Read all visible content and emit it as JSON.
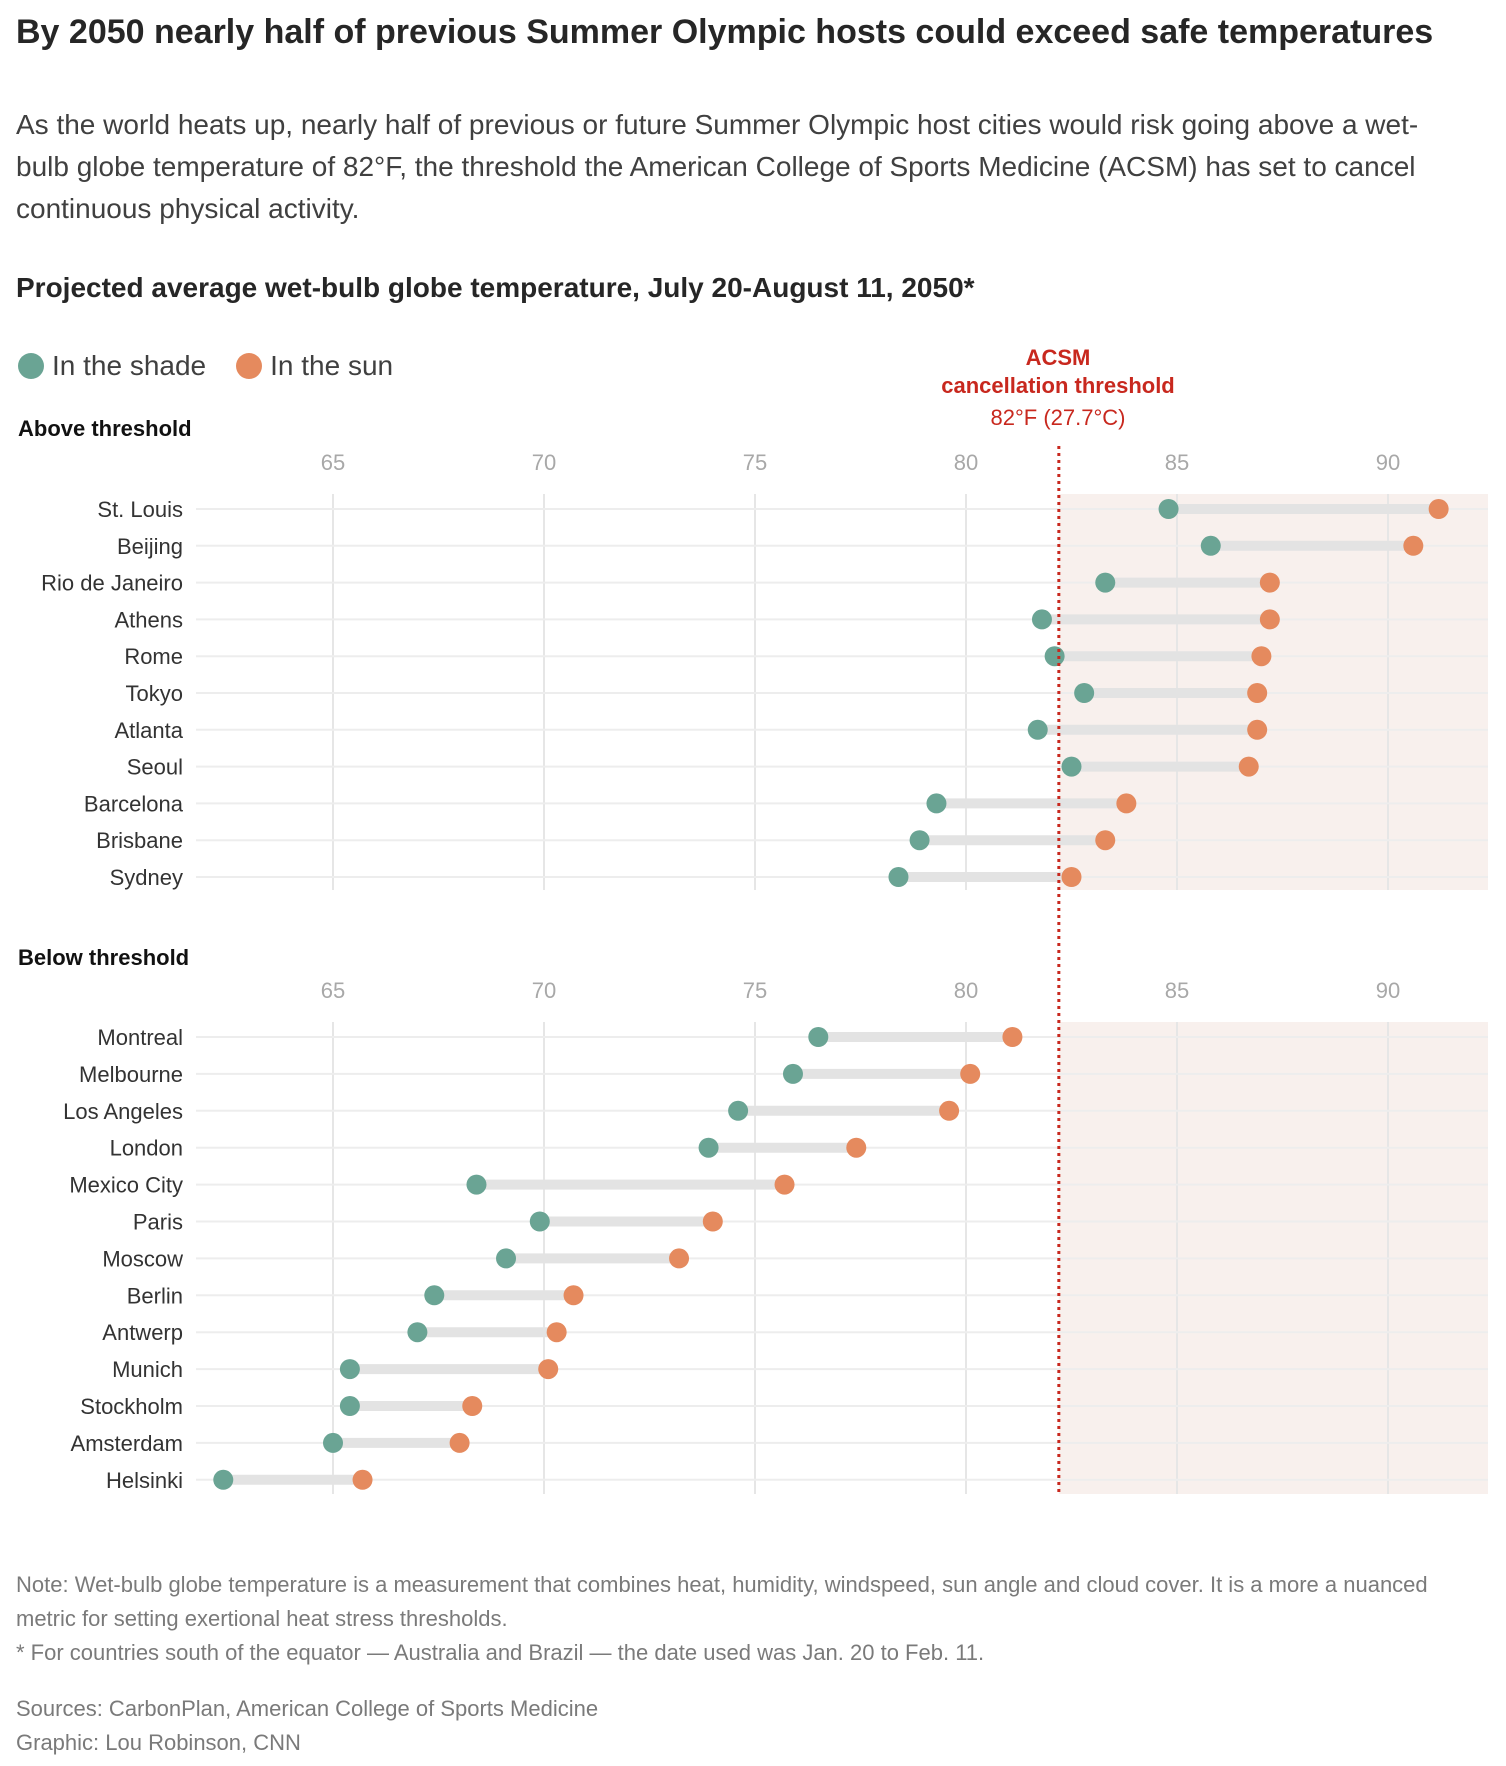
{
  "title": "By 2050 nearly half of previous Summer Olympic hosts could exceed safe temperatures",
  "subtitle": "As the world heats up, nearly half of previous or future Summer Olympic host cities would risk going above a wet-bulb globe temperature of 82°F, the threshold the American College of Sports Medicine (ACSM) has set to cancel continuous physical activity.",
  "chart_heading": "Projected average wet-bulb globe temperature, July 20-August 11, 2050*",
  "legend": {
    "shade": "In the shade",
    "sun": "In the sun"
  },
  "threshold": {
    "line1": "ACSM",
    "line2": "cancellation threshold",
    "line3": "82°F (27.7°C)"
  },
  "colors": {
    "shade": "#6aa494",
    "sun": "#e58a5e",
    "threshold": "#c8281e",
    "range_bar": "#e3e3e3",
    "above_bg": "#f8f0ed",
    "grid": "#e6e6e6"
  },
  "chart_data": {
    "type": "dot-range",
    "unit": "°F",
    "threshold_value": 82.2,
    "xlim": [
      61.5,
      92.5
    ],
    "ticks": [
      65,
      70,
      75,
      80,
      85,
      90
    ],
    "groups": [
      {
        "label": "Above threshold",
        "cities": [
          {
            "name": "St. Louis",
            "shade": 84.8,
            "sun": 91.2
          },
          {
            "name": "Beijing",
            "shade": 85.8,
            "sun": 90.6
          },
          {
            "name": "Rio de Janeiro",
            "shade": 83.3,
            "sun": 87.2
          },
          {
            "name": "Athens",
            "shade": 81.8,
            "sun": 87.2
          },
          {
            "name": "Rome",
            "shade": 82.1,
            "sun": 87.0
          },
          {
            "name": "Tokyo",
            "shade": 82.8,
            "sun": 86.9
          },
          {
            "name": "Atlanta",
            "shade": 81.7,
            "sun": 86.9
          },
          {
            "name": "Seoul",
            "shade": 82.5,
            "sun": 86.7
          },
          {
            "name": "Barcelona",
            "shade": 79.3,
            "sun": 83.8
          },
          {
            "name": "Brisbane",
            "shade": 78.9,
            "sun": 83.3
          },
          {
            "name": "Sydney",
            "shade": 78.4,
            "sun": 82.5
          }
        ]
      },
      {
        "label": "Below threshold",
        "cities": [
          {
            "name": "Montreal",
            "shade": 76.5,
            "sun": 81.1
          },
          {
            "name": "Melbourne",
            "shade": 75.9,
            "sun": 80.1
          },
          {
            "name": "Los Angeles",
            "shade": 74.6,
            "sun": 79.6
          },
          {
            "name": "London",
            "shade": 73.9,
            "sun": 77.4
          },
          {
            "name": "Mexico City",
            "shade": 68.4,
            "sun": 75.7
          },
          {
            "name": "Paris",
            "shade": 69.9,
            "sun": 74.0
          },
          {
            "name": "Moscow",
            "shade": 69.1,
            "sun": 73.2
          },
          {
            "name": "Berlin",
            "shade": 67.4,
            "sun": 70.7
          },
          {
            "name": "Antwerp",
            "shade": 67.0,
            "sun": 70.3
          },
          {
            "name": "Munich",
            "shade": 65.4,
            "sun": 70.1
          },
          {
            "name": "Stockholm",
            "shade": 65.4,
            "sun": 68.3
          },
          {
            "name": "Amsterdam",
            "shade": 65.0,
            "sun": 68.0
          },
          {
            "name": "Helsinki",
            "shade": 62.4,
            "sun": 65.7
          }
        ]
      }
    ]
  },
  "notes": {
    "note": "Note: Wet-bulb globe temperature is a measurement that combines heat, humidity, windspeed, sun angle and cloud cover. It is a more a nuanced metric for setting exertional heat stress thresholds.",
    "footnote": "* For countries south of the equator — Australia and Brazil — the date used was Jan. 20 to Feb. 11.",
    "sources": "Sources: CarbonPlan, American College of Sports Medicine",
    "graphic": "Graphic: Lou Robinson, CNN"
  }
}
